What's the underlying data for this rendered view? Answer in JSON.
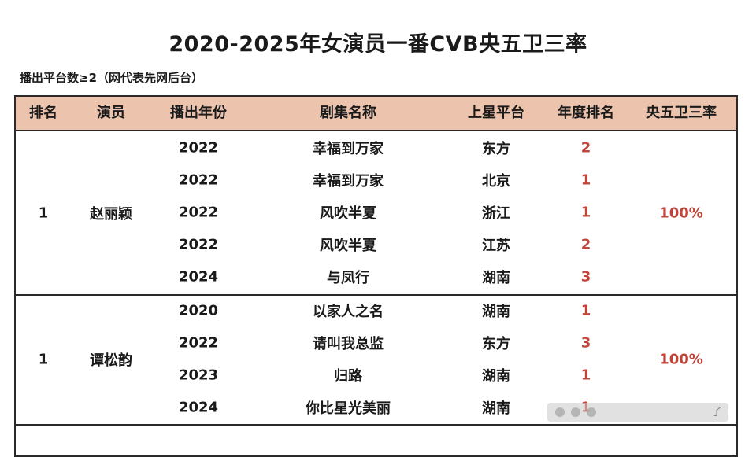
{
  "title": "2020-2025年女演员一番CVB央五卫三率",
  "subtitle": "播出平台数≥2（网代表先网后台）",
  "headers": {
    "rank": "排名",
    "actor": "演员",
    "year": "播出年份",
    "drama": "剧集名称",
    "platform": "上星平台",
    "year_rank": "年度排名",
    "rate": "央五卫三率"
  },
  "groups": [
    {
      "rank": "1",
      "actor": "赵丽颖",
      "rate": "100%",
      "rows": [
        {
          "year": "2022",
          "drama": "幸福到万家",
          "platform": "东方",
          "year_rank": "2"
        },
        {
          "year": "2022",
          "drama": "幸福到万家",
          "platform": "北京",
          "year_rank": "1"
        },
        {
          "year": "2022",
          "drama": "风吹半夏",
          "platform": "浙江",
          "year_rank": "1"
        },
        {
          "year": "2022",
          "drama": "风吹半夏",
          "platform": "江苏",
          "year_rank": "2"
        },
        {
          "year": "2024",
          "drama": "与凤行",
          "platform": "湖南",
          "year_rank": "3"
        }
      ]
    },
    {
      "rank": "1",
      "actor": "谭松韵",
      "rate": "100%",
      "rows": [
        {
          "year": "2020",
          "drama": "以家人之名",
          "platform": "湖南",
          "year_rank": "1"
        },
        {
          "year": "2022",
          "drama": "请叫我总监",
          "platform": "东方",
          "year_rank": "3"
        },
        {
          "year": "2023",
          "drama": "归路",
          "platform": "湖南",
          "year_rank": "1"
        },
        {
          "year": "2024",
          "drama": "你比星光美丽",
          "platform": "湖南",
          "year_rank": "1"
        }
      ]
    }
  ],
  "watermark_text": "了"
}
